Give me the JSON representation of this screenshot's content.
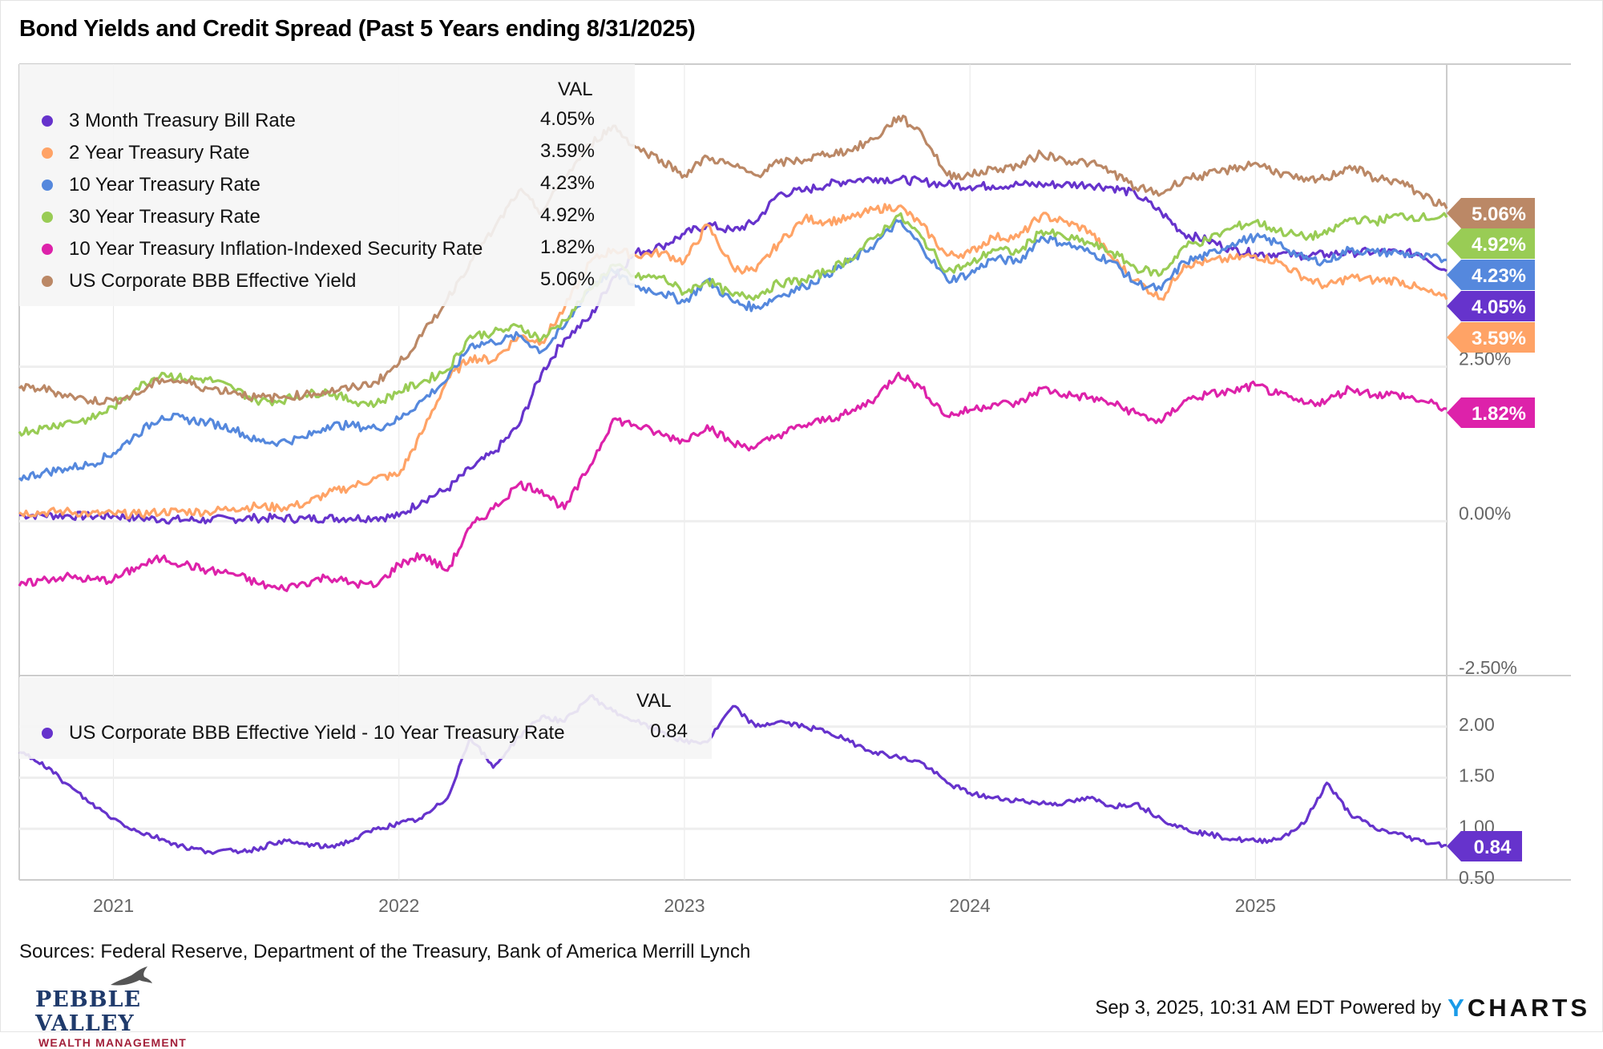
{
  "title": "Bond Yields and Credit Spread (Past 5 Years ending 8/31/2025)",
  "colors": {
    "t3m": "#6633cc",
    "t2y": "#ffa366",
    "t10y": "#5588dd",
    "t30y": "#99cc55",
    "tips10": "#dd22aa",
    "bbb": "#bb8866",
    "spread": "#6633cc"
  },
  "legend_top": {
    "header": "VAL",
    "items": [
      {
        "label": "3 Month Treasury Bill Rate",
        "value": "4.05%",
        "color_key": "t3m"
      },
      {
        "label": "2 Year Treasury Rate",
        "value": "3.59%",
        "color_key": "t2y"
      },
      {
        "label": "10 Year Treasury Rate",
        "value": "4.23%",
        "color_key": "t10y"
      },
      {
        "label": "30 Year Treasury Rate",
        "value": "4.92%",
        "color_key": "t30y"
      },
      {
        "label": "10 Year Treasury Inflation-Indexed Security Rate",
        "value": "1.82%",
        "color_key": "tips10"
      },
      {
        "label": "US Corporate BBB Effective Yield",
        "value": "5.06%",
        "color_key": "bbb"
      }
    ]
  },
  "legend_bottom": {
    "header": "VAL",
    "items": [
      {
        "label": "US Corporate BBB Effective Yield - 10 Year Treasury Rate",
        "value": "0.84",
        "color_key": "spread"
      }
    ]
  },
  "footer": {
    "sources": "Sources: Federal Reserve, Department of the Treasury, Bank of America Merrill Lynch",
    "brand_name": "PEBBLE VALLEY",
    "brand_sub": "WEALTH MANAGEMENT",
    "timestamp": "Sep 3, 2025, 10:31 AM EDT Powered by",
    "powered_logo": "YCHARTS"
  },
  "chart_data": [
    {
      "type": "line",
      "title": "Bond Yields and Credit Spread (Past 5 Years ending 8/31/2025)",
      "panel": "top",
      "xlim": [
        2020.67,
        2025.67
      ],
      "ylim": [
        -2.5,
        7.4
      ],
      "y_ticks": [
        "2.50%",
        "0.00%",
        "-2.50%"
      ],
      "y_tick_values": [
        2.5,
        0,
        -2.5
      ],
      "x_ticks": [
        "2021",
        "2022",
        "2023",
        "2024",
        "2025"
      ],
      "x_tick_values": [
        2021,
        2022,
        2023,
        2024,
        2025
      ],
      "grid": true,
      "legend": "top-left",
      "end_labels": [
        "5.06%",
        "4.92%",
        "4.23%",
        "4.05%",
        "3.59%",
        "1.82%"
      ],
      "x": [
        2020.67,
        2020.75,
        2020.83,
        2020.92,
        2021.0,
        2021.08,
        2021.17,
        2021.25,
        2021.33,
        2021.42,
        2021.5,
        2021.58,
        2021.67,
        2021.75,
        2021.83,
        2021.92,
        2022.0,
        2022.08,
        2022.17,
        2022.25,
        2022.33,
        2022.42,
        2022.5,
        2022.58,
        2022.67,
        2022.75,
        2022.83,
        2022.92,
        2023.0,
        2023.08,
        2023.17,
        2023.25,
        2023.33,
        2023.42,
        2023.5,
        2023.58,
        2023.67,
        2023.75,
        2023.83,
        2023.92,
        2024.0,
        2024.08,
        2024.17,
        2024.25,
        2024.33,
        2024.42,
        2024.5,
        2024.58,
        2024.67,
        2024.75,
        2024.83,
        2024.92,
        2025.0,
        2025.08,
        2025.17,
        2025.25,
        2025.33,
        2025.42,
        2025.5,
        2025.58,
        2025.67
      ],
      "series": [
        {
          "name": "3 Month Treasury Bill Rate",
          "color_key": "t3m",
          "values": [
            0.1,
            0.1,
            0.09,
            0.08,
            0.09,
            0.05,
            0.03,
            0.02,
            0.02,
            0.04,
            0.05,
            0.05,
            0.04,
            0.05,
            0.05,
            0.06,
            0.08,
            0.33,
            0.52,
            0.85,
            1.1,
            1.55,
            2.4,
            2.95,
            3.3,
            3.95,
            4.35,
            4.45,
            4.65,
            4.8,
            4.7,
            4.85,
            5.3,
            5.35,
            5.45,
            5.52,
            5.55,
            5.53,
            5.5,
            5.45,
            5.42,
            5.43,
            5.45,
            5.45,
            5.45,
            5.45,
            5.4,
            5.3,
            5.0,
            4.65,
            4.55,
            4.4,
            4.33,
            4.33,
            4.3,
            4.32,
            4.35,
            4.36,
            4.35,
            4.32,
            4.05
          ]
        },
        {
          "name": "2 Year Treasury Rate",
          "color_key": "t2y",
          "values": [
            0.14,
            0.14,
            0.16,
            0.12,
            0.12,
            0.11,
            0.15,
            0.16,
            0.15,
            0.21,
            0.24,
            0.22,
            0.28,
            0.45,
            0.55,
            0.7,
            0.75,
            1.42,
            2.3,
            2.65,
            2.6,
            3.0,
            2.9,
            3.45,
            4.2,
            4.4,
            4.3,
            4.35,
            4.2,
            4.8,
            4.1,
            4.05,
            4.5,
            4.9,
            4.85,
            4.9,
            5.05,
            5.1,
            4.8,
            4.3,
            4.35,
            4.6,
            4.6,
            4.95,
            4.85,
            4.7,
            4.25,
            3.9,
            3.6,
            4.15,
            4.2,
            4.25,
            4.3,
            4.2,
            3.95,
            3.8,
            3.95,
            3.9,
            3.9,
            3.75,
            3.59
          ]
        },
        {
          "name": "10 Year Treasury Rate",
          "color_key": "t10y",
          "values": [
            0.7,
            0.78,
            0.85,
            0.92,
            1.1,
            1.4,
            1.7,
            1.65,
            1.6,
            1.5,
            1.3,
            1.28,
            1.35,
            1.55,
            1.55,
            1.5,
            1.65,
            1.95,
            2.3,
            2.85,
            2.9,
            3.0,
            2.75,
            3.15,
            3.8,
            4.05,
            3.8,
            3.7,
            3.55,
            3.9,
            3.55,
            3.45,
            3.65,
            3.8,
            4.0,
            4.2,
            4.5,
            4.85,
            4.45,
            3.9,
            4.0,
            4.25,
            4.2,
            4.6,
            4.5,
            4.35,
            4.2,
            3.85,
            3.75,
            4.2,
            4.3,
            4.5,
            4.6,
            4.5,
            4.25,
            4.2,
            4.4,
            4.35,
            4.35,
            4.28,
            4.23
          ]
        },
        {
          "name": "30 Year Treasury Rate",
          "color_key": "t30y",
          "values": [
            1.45,
            1.5,
            1.6,
            1.65,
            1.85,
            2.15,
            2.4,
            2.3,
            2.3,
            2.15,
            1.95,
            1.95,
            2.05,
            2.1,
            1.95,
            1.9,
            2.1,
            2.25,
            2.45,
            3.0,
            3.05,
            3.15,
            2.95,
            3.25,
            3.75,
            4.15,
            3.95,
            3.95,
            3.7,
            3.9,
            3.65,
            3.65,
            3.85,
            3.9,
            4.05,
            4.25,
            4.6,
            4.95,
            4.6,
            4.05,
            4.15,
            4.4,
            4.35,
            4.7,
            4.6,
            4.5,
            4.35,
            4.1,
            4.0,
            4.45,
            4.55,
            4.75,
            4.85,
            4.7,
            4.6,
            4.65,
            4.9,
            4.85,
            4.95,
            4.92,
            4.92
          ]
        },
        {
          "name": "10 Year Treasury Inflation-Indexed Security Rate",
          "color_key": "tips10",
          "values": [
            -1.05,
            -0.95,
            -0.9,
            -0.95,
            -0.95,
            -0.75,
            -0.6,
            -0.7,
            -0.8,
            -0.85,
            -1.0,
            -1.1,
            -1.0,
            -0.9,
            -1.0,
            -1.05,
            -0.7,
            -0.55,
            -0.8,
            -0.1,
            0.2,
            0.6,
            0.5,
            0.2,
            0.9,
            1.65,
            1.55,
            1.4,
            1.3,
            1.55,
            1.25,
            1.2,
            1.4,
            1.55,
            1.65,
            1.75,
            2.0,
            2.4,
            2.15,
            1.7,
            1.8,
            1.9,
            1.9,
            2.15,
            2.05,
            2.0,
            1.9,
            1.75,
            1.6,
            1.95,
            2.05,
            2.1,
            2.2,
            2.05,
            1.9,
            1.95,
            2.15,
            2.05,
            2.05,
            1.95,
            1.82
          ]
        },
        {
          "name": "US Corporate BBB Effective Yield",
          "color_key": "bbb",
          "values": [
            2.15,
            2.15,
            2.05,
            1.95,
            1.95,
            2.05,
            2.3,
            2.25,
            2.15,
            2.1,
            2.0,
            2.0,
            2.05,
            2.1,
            2.15,
            2.25,
            2.55,
            3.0,
            3.6,
            4.2,
            4.7,
            5.35,
            5.0,
            5.55,
            6.1,
            6.4,
            6.05,
            5.85,
            5.6,
            5.9,
            5.75,
            5.6,
            5.8,
            5.85,
            5.95,
            6.0,
            6.2,
            6.55,
            6.3,
            5.6,
            5.6,
            5.7,
            5.75,
            5.95,
            5.85,
            5.8,
            5.65,
            5.4,
            5.3,
            5.55,
            5.6,
            5.7,
            5.8,
            5.65,
            5.5,
            5.55,
            5.75,
            5.55,
            5.5,
            5.3,
            5.06
          ]
        }
      ]
    },
    {
      "type": "line",
      "panel": "bottom",
      "xlim": [
        2020.67,
        2025.67
      ],
      "ylim": [
        0.5,
        2.5
      ],
      "y_ticks": [
        "2.00",
        "1.50",
        "1.00",
        "0.50"
      ],
      "y_tick_values": [
        2.0,
        1.5,
        1.0,
        0.5
      ],
      "grid": true,
      "legend": "top-left",
      "end_labels": [
        "0.84"
      ],
      "x": [
        2020.67,
        2020.75,
        2020.83,
        2020.92,
        2021.0,
        2021.08,
        2021.17,
        2021.25,
        2021.33,
        2021.42,
        2021.5,
        2021.58,
        2021.67,
        2021.75,
        2021.83,
        2021.92,
        2022.0,
        2022.08,
        2022.17,
        2022.25,
        2022.33,
        2022.42,
        2022.5,
        2022.58,
        2022.67,
        2022.75,
        2022.83,
        2022.92,
        2023.0,
        2023.08,
        2023.17,
        2023.25,
        2023.33,
        2023.42,
        2023.5,
        2023.58,
        2023.67,
        2023.75,
        2023.83,
        2023.92,
        2024.0,
        2024.08,
        2024.17,
        2024.25,
        2024.33,
        2024.42,
        2024.5,
        2024.58,
        2024.67,
        2024.75,
        2024.83,
        2024.92,
        2025.0,
        2025.08,
        2025.17,
        2025.25,
        2025.33,
        2025.42,
        2025.5,
        2025.58,
        2025.67
      ],
      "series": [
        {
          "name": "US Corporate BBB Effective Yield - 10 Year Treasury Rate",
          "color_key": "spread",
          "values": [
            1.75,
            1.65,
            1.45,
            1.25,
            1.1,
            0.98,
            0.9,
            0.82,
            0.78,
            0.78,
            0.8,
            0.88,
            0.85,
            0.82,
            0.88,
            1.0,
            1.05,
            1.1,
            1.3,
            1.9,
            1.6,
            1.9,
            2.1,
            2.05,
            2.3,
            2.15,
            2.05,
            1.95,
            1.85,
            1.85,
            2.2,
            2.0,
            2.05,
            2.0,
            1.95,
            1.85,
            1.75,
            1.7,
            1.65,
            1.45,
            1.35,
            1.3,
            1.28,
            1.25,
            1.25,
            1.3,
            1.22,
            1.25,
            1.1,
            1.0,
            0.95,
            0.9,
            0.88,
            0.9,
            1.05,
            1.45,
            1.15,
            1.0,
            0.95,
            0.88,
            0.84
          ]
        }
      ]
    }
  ]
}
